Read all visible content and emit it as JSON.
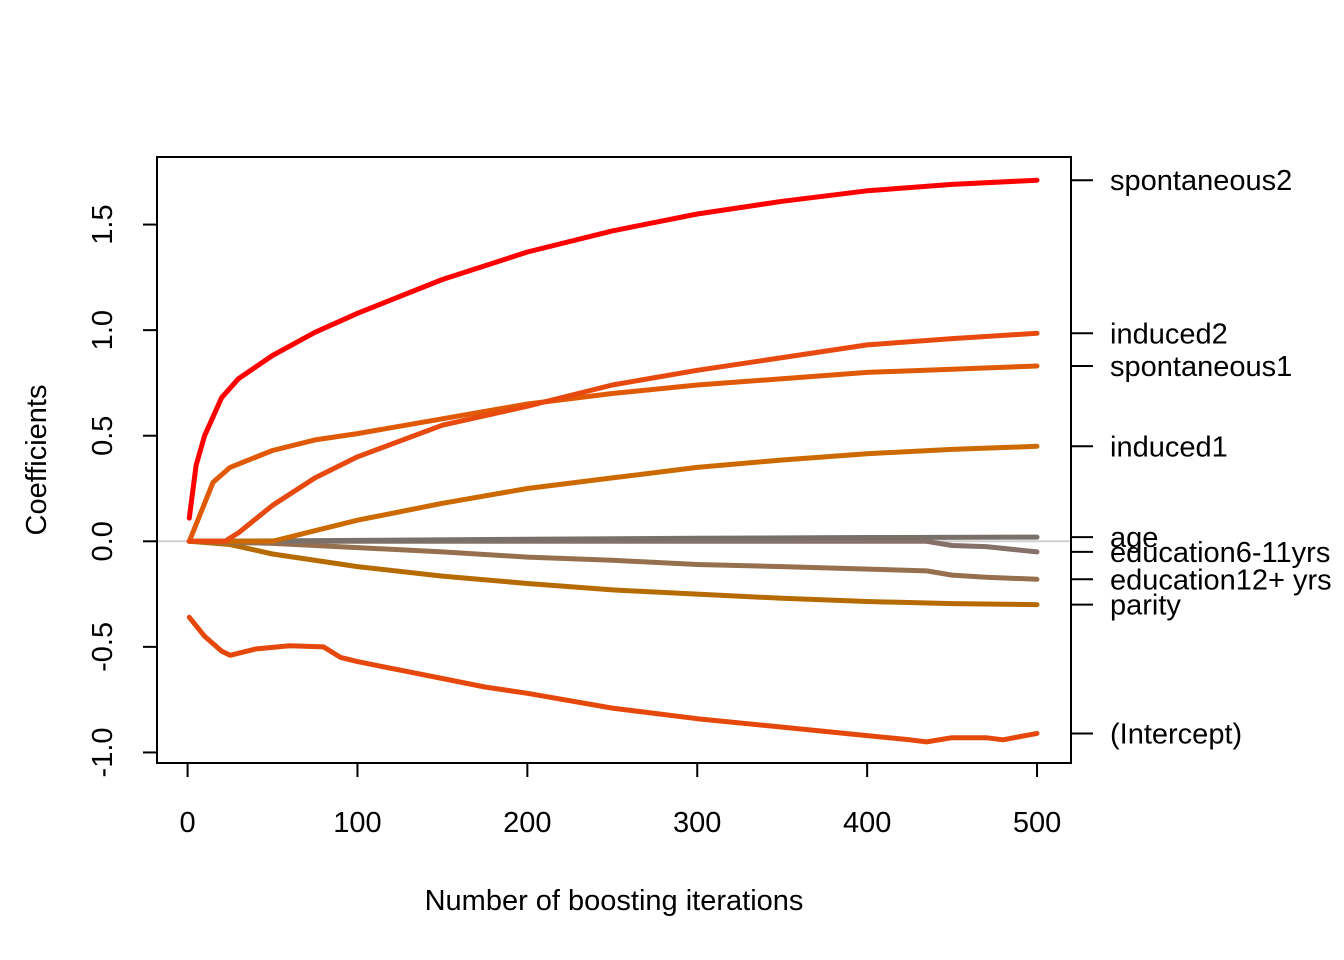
{
  "chart_data": {
    "type": "line",
    "title": "",
    "xlabel": "Number of boosting iterations",
    "ylabel": "Coefficients",
    "xlim": [
      -18,
      520
    ],
    "ylim": [
      -1.05,
      1.82
    ],
    "x_ticks": [
      0,
      100,
      200,
      300,
      400,
      500
    ],
    "x_tick_labels": [
      "0",
      "100",
      "200",
      "300",
      "400",
      "500"
    ],
    "y_ticks": [
      -1.0,
      -0.5,
      0.0,
      0.5,
      1.0,
      1.5
    ],
    "y_tick_labels": [
      "-1.0",
      "-0.5",
      "0.0",
      "0.5",
      "1.0",
      "1.5"
    ],
    "grid": false,
    "zero_line": true,
    "series": [
      {
        "name": "spontaneous2",
        "color": "#ff0000",
        "end_value": 1.71,
        "points": [
          [
            1,
            0.11
          ],
          [
            5,
            0.36
          ],
          [
            10,
            0.5
          ],
          [
            20,
            0.68
          ],
          [
            30,
            0.77
          ],
          [
            50,
            0.88
          ],
          [
            75,
            0.99
          ],
          [
            100,
            1.08
          ],
          [
            150,
            1.24
          ],
          [
            200,
            1.37
          ],
          [
            250,
            1.47
          ],
          [
            300,
            1.55
          ],
          [
            350,
            1.61
          ],
          [
            400,
            1.66
          ],
          [
            450,
            1.69
          ],
          [
            500,
            1.71
          ]
        ]
      },
      {
        "name": "induced2",
        "color": "#e8490f",
        "end_value": 0.985,
        "points": [
          [
            1,
            0
          ],
          [
            22,
            0
          ],
          [
            30,
            0.04
          ],
          [
            50,
            0.17
          ],
          [
            75,
            0.3
          ],
          [
            100,
            0.4
          ],
          [
            150,
            0.55
          ],
          [
            200,
            0.64
          ],
          [
            250,
            0.74
          ],
          [
            300,
            0.81
          ],
          [
            350,
            0.87
          ],
          [
            400,
            0.93
          ],
          [
            450,
            0.96
          ],
          [
            500,
            0.985
          ]
        ]
      },
      {
        "name": "spontaneous1",
        "color": "#e05a05",
        "end_value": 0.83,
        "points": [
          [
            1,
            0
          ],
          [
            5,
            0.08
          ],
          [
            15,
            0.28
          ],
          [
            25,
            0.35
          ],
          [
            50,
            0.43
          ],
          [
            75,
            0.48
          ],
          [
            100,
            0.51
          ],
          [
            150,
            0.58
          ],
          [
            200,
            0.65
          ],
          [
            250,
            0.7
          ],
          [
            300,
            0.74
          ],
          [
            350,
            0.77
          ],
          [
            400,
            0.8
          ],
          [
            450,
            0.815
          ],
          [
            500,
            0.83
          ]
        ]
      },
      {
        "name": "induced1",
        "color": "#cc6a00",
        "end_value": 0.45,
        "points": [
          [
            1,
            0
          ],
          [
            50,
            0
          ],
          [
            75,
            0.05
          ],
          [
            100,
            0.1
          ],
          [
            150,
            0.18
          ],
          [
            200,
            0.25
          ],
          [
            250,
            0.3
          ],
          [
            300,
            0.35
          ],
          [
            350,
            0.385
          ],
          [
            400,
            0.415
          ],
          [
            450,
            0.435
          ],
          [
            500,
            0.45
          ]
        ]
      },
      {
        "name": "age",
        "color": "#7a706a",
        "end_value": 0.02,
        "points": [
          [
            1,
            0
          ],
          [
            100,
            0.004
          ],
          [
            200,
            0.01
          ],
          [
            300,
            0.014
          ],
          [
            400,
            0.018
          ],
          [
            500,
            0.02
          ]
        ]
      },
      {
        "name": "education6-11yrs",
        "color": "#85706a",
        "end_value": -0.05,
        "points": [
          [
            1,
            0
          ],
          [
            100,
            0
          ],
          [
            200,
            0
          ],
          [
            300,
            0
          ],
          [
            435,
            0
          ],
          [
            450,
            -0.02
          ],
          [
            470,
            -0.025
          ],
          [
            500,
            -0.05
          ]
        ]
      },
      {
        "name": "education12+ yrs",
        "color": "#96704e",
        "end_value": -0.18,
        "points": [
          [
            1,
            0
          ],
          [
            50,
            -0.01
          ],
          [
            100,
            -0.03
          ],
          [
            150,
            -0.05
          ],
          [
            200,
            -0.075
          ],
          [
            250,
            -0.09
          ],
          [
            300,
            -0.11
          ],
          [
            350,
            -0.12
          ],
          [
            435,
            -0.14
          ],
          [
            450,
            -0.16
          ],
          [
            470,
            -0.17
          ],
          [
            500,
            -0.18
          ]
        ]
      },
      {
        "name": "parity",
        "color": "#b66b00",
        "end_value": -0.3,
        "points": [
          [
            1,
            0
          ],
          [
            25,
            -0.015
          ],
          [
            50,
            -0.06
          ],
          [
            100,
            -0.12
          ],
          [
            150,
            -0.165
          ],
          [
            200,
            -0.2
          ],
          [
            250,
            -0.23
          ],
          [
            300,
            -0.25
          ],
          [
            350,
            -0.27
          ],
          [
            400,
            -0.285
          ],
          [
            450,
            -0.295
          ],
          [
            500,
            -0.3
          ]
        ]
      },
      {
        "name": "(Intercept)",
        "color": "#e5480a",
        "end_value": -0.91,
        "points": [
          [
            1,
            -0.36
          ],
          [
            10,
            -0.45
          ],
          [
            20,
            -0.52
          ],
          [
            25,
            -0.54
          ],
          [
            40,
            -0.51
          ],
          [
            60,
            -0.495
          ],
          [
            80,
            -0.5
          ],
          [
            90,
            -0.55
          ],
          [
            100,
            -0.57
          ],
          [
            125,
            -0.61
          ],
          [
            150,
            -0.65
          ],
          [
            175,
            -0.69
          ],
          [
            200,
            -0.72
          ],
          [
            250,
            -0.79
          ],
          [
            300,
            -0.84
          ],
          [
            350,
            -0.88
          ],
          [
            400,
            -0.92
          ],
          [
            425,
            -0.94
          ],
          [
            435,
            -0.95
          ],
          [
            450,
            -0.93
          ],
          [
            470,
            -0.93
          ],
          [
            480,
            -0.94
          ],
          [
            500,
            -0.91
          ]
        ]
      }
    ]
  }
}
